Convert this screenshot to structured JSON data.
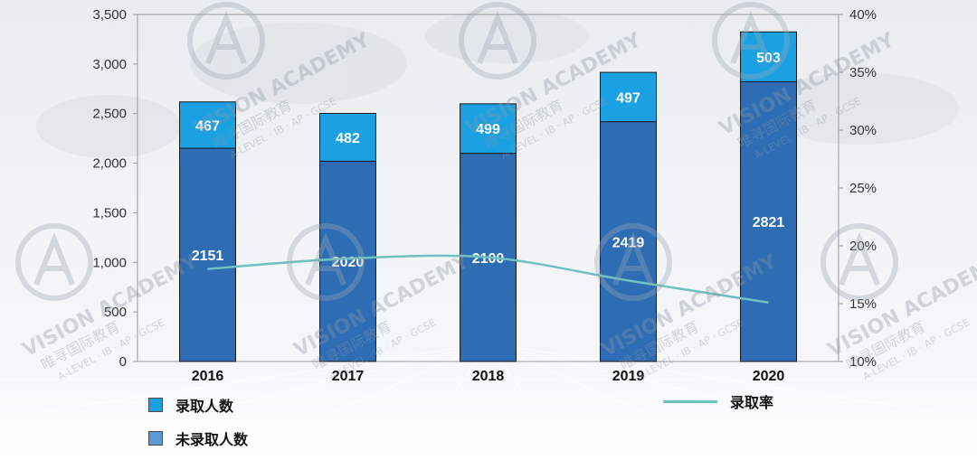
{
  "colors": {
    "admitted": "#1ba1e2",
    "not_admitted": "#2e6db4",
    "rate_line": "#6fc1c0",
    "legend_not_admitted": "#5b9bd5"
  },
  "legend": {
    "admitted_label": "录取人数",
    "not_admitted_label": "未录取人数",
    "rate_label": "录取率"
  },
  "watermark": {
    "brand": "VISION ACADEMY",
    "cn": "唯寻国际教育",
    "sub": "A-LEVEL · IB · AP · GCSE"
  },
  "chart_data": {
    "type": "bar",
    "stacked": true,
    "categories": [
      "2016",
      "2017",
      "2018",
      "2019",
      "2020"
    ],
    "series": [
      {
        "name": "未录取人数",
        "values": [
          2151,
          2020,
          2100,
          2419,
          2821
        ]
      },
      {
        "name": "录取人数",
        "values": [
          467,
          482,
          499,
          497,
          503
        ]
      }
    ],
    "line_series": {
      "name": "录取率",
      "values": [
        18.0,
        18.9,
        19.0,
        17.0,
        15.1
      ],
      "unit": "%"
    },
    "ylim": [
      0,
      3500
    ],
    "yticks": [
      0,
      500,
      1000,
      1500,
      2000,
      2500,
      3000,
      3500
    ],
    "ytick_labels": [
      "0",
      "500",
      "1,000",
      "1,500",
      "2,000",
      "2,500",
      "3,000",
      "3,500"
    ],
    "y2lim": [
      10,
      40
    ],
    "y2ticks": [
      10,
      15,
      20,
      25,
      30,
      35,
      40
    ],
    "y2tick_labels": [
      "10%",
      "15%",
      "20%",
      "25%",
      "30%",
      "35%",
      "40%"
    ],
    "title": "",
    "xlabel": "",
    "ylabel": "",
    "grid": false,
    "legend_position": "bottom"
  }
}
